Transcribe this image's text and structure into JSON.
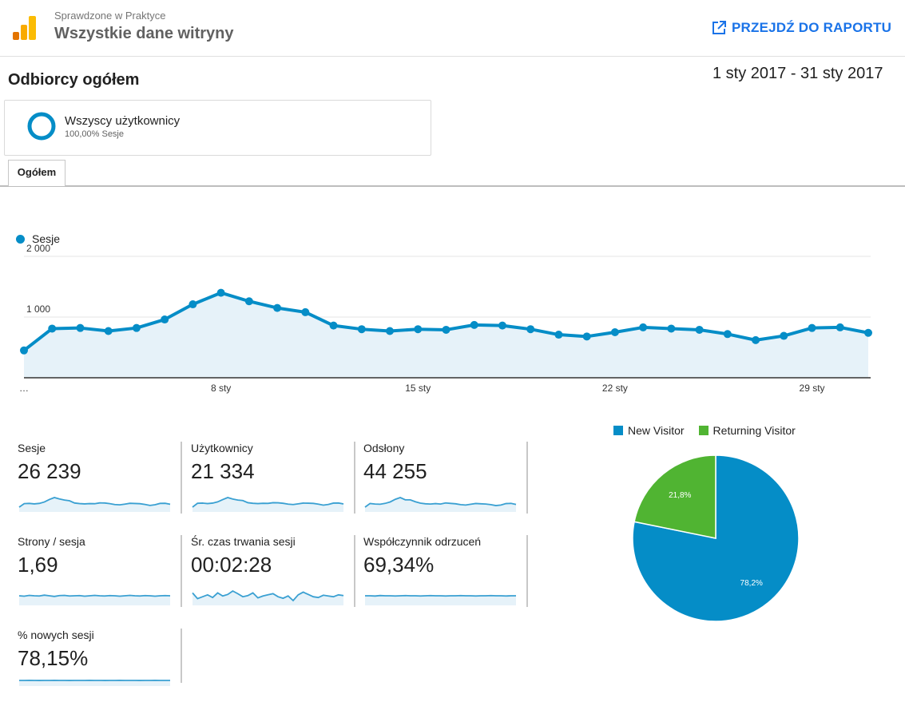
{
  "header": {
    "account": "Sprawdzone w Praktyce",
    "property": "Wszystkie dane witryny",
    "report_button": "PRZEJDŹ DO RAPORTU",
    "report_icon": "open-in-new-icon",
    "logo_icon": "analytics-logo-icon"
  },
  "page": {
    "title": "Odbiorcy ogółem",
    "date_range": "1 sty 2017 - 31 sty 2017"
  },
  "segment": {
    "name": "Wszyscy użytkownicy",
    "detail": "100,00% Sesje"
  },
  "tabs": [
    {
      "label": "Ogółem",
      "active": true
    }
  ],
  "colors": {
    "primary": "#058dc7",
    "returning": "#50b432",
    "link": "#1a73e8",
    "area": "#e6f2f9"
  },
  "chart_data": [
    {
      "type": "line",
      "series": [
        {
          "name": "Sesje",
          "values": [
            450,
            810,
            820,
            770,
            820,
            960,
            1210,
            1400,
            1260,
            1150,
            1080,
            860,
            800,
            770,
            800,
            790,
            870,
            860,
            800,
            710,
            680,
            750,
            830,
            810,
            790,
            720,
            620,
            690,
            820,
            830,
            740
          ]
        }
      ],
      "x": [
        "1 sty",
        "2 sty",
        "3 sty",
        "4 sty",
        "5 sty",
        "6 sty",
        "7 sty",
        "8 sty",
        "9 sty",
        "10 sty",
        "11 sty",
        "12 sty",
        "13 sty",
        "14 sty",
        "15 sty",
        "16 sty",
        "17 sty",
        "18 sty",
        "19 sty",
        "20 sty",
        "21 sty",
        "22 sty",
        "23 sty",
        "24 sty",
        "25 sty",
        "26 sty",
        "27 sty",
        "28 sty",
        "29 sty",
        "30 sty",
        "31 sty"
      ],
      "x_tick_labels": [
        {
          "index": 0,
          "label": "…"
        },
        {
          "index": 7,
          "label": "8 sty"
        },
        {
          "index": 14,
          "label": "15 sty"
        },
        {
          "index": 21,
          "label": "22 sty"
        },
        {
          "index": 28,
          "label": "29 sty"
        }
      ],
      "y_tick_labels": [
        "1 000",
        "2 000"
      ],
      "ylim": [
        0,
        2000
      ],
      "grid": true,
      "legend": "top-left"
    },
    {
      "type": "pie",
      "categories": [
        "New Visitor",
        "Returning Visitor"
      ],
      "values": [
        78.2,
        21.8
      ],
      "labels": [
        "78,2%",
        "21,8%"
      ],
      "colors": [
        "#058dc7",
        "#50b432"
      ],
      "legend": "top"
    }
  ],
  "metrics": [
    {
      "name": "Sesje",
      "value": "26 239",
      "spark": [
        0.45,
        0.8,
        0.82,
        0.77,
        0.82,
        0.96,
        1.21,
        1.4,
        1.26,
        1.15,
        1.08,
        0.86,
        0.8,
        0.77,
        0.8,
        0.79,
        0.87,
        0.86,
        0.8,
        0.71,
        0.68,
        0.75,
        0.83,
        0.81,
        0.79,
        0.72,
        0.62,
        0.69,
        0.82,
        0.83,
        0.74
      ]
    },
    {
      "name": "Użytkownicy",
      "value": "21 334",
      "spark": [
        0.4,
        0.78,
        0.8,
        0.75,
        0.8,
        0.92,
        1.15,
        1.35,
        1.2,
        1.1,
        1.05,
        0.84,
        0.78,
        0.75,
        0.78,
        0.77,
        0.84,
        0.83,
        0.78,
        0.7,
        0.66,
        0.73,
        0.8,
        0.79,
        0.77,
        0.7,
        0.6,
        0.67,
        0.8,
        0.81,
        0.72
      ]
    },
    {
      "name": "Odsłony",
      "value": "44 255",
      "spark": [
        0.5,
        0.85,
        0.8,
        0.78,
        0.86,
        1.0,
        1.25,
        1.42,
        1.2,
        1.2,
        1.02,
        0.88,
        0.82,
        0.8,
        0.84,
        0.8,
        0.9,
        0.86,
        0.82,
        0.74,
        0.7,
        0.78,
        0.85,
        0.82,
        0.8,
        0.74,
        0.65,
        0.7,
        0.84,
        0.86,
        0.76
      ]
    },
    {
      "name": "Strony / sesja",
      "value": "1,69",
      "spark": [
        1.0,
        0.98,
        1.02,
        1.0,
        0.99,
        1.03,
        1.0,
        0.97,
        1.01,
        1.02,
        0.99,
        1.0,
        1.01,
        0.98,
        1.0,
        1.02,
        1.0,
        0.99,
        1.01,
        1.0,
        0.98,
        1.0,
        1.02,
        1.0,
        0.99,
        1.01,
        1.0,
        0.98,
        1.0,
        1.01,
        1.0
      ]
    },
    {
      "name": "Śr. czas trwania sesji",
      "value": "00:02:28",
      "spark": [
        1.0,
        0.85,
        0.9,
        0.95,
        0.88,
        1.0,
        0.92,
        0.96,
        1.05,
        0.98,
        0.9,
        0.93,
        1.0,
        0.87,
        0.92,
        0.95,
        0.98,
        0.9,
        0.86,
        0.92,
        0.8,
        0.95,
        1.02,
        0.96,
        0.9,
        0.88,
        0.94,
        0.92,
        0.9,
        0.95,
        0.93
      ]
    },
    {
      "name": "Współczynnik odrzuceń",
      "value": "69,34%",
      "spark": [
        1.0,
        1.0,
        0.99,
        1.01,
        1.0,
        1.0,
        0.99,
        1.0,
        1.01,
        1.0,
        1.0,
        0.99,
        1.0,
        1.01,
        1.0,
        1.0,
        0.99,
        1.0,
        1.0,
        1.01,
        1.0,
        1.0,
        0.99,
        1.0,
        1.0,
        1.01,
        1.0,
        1.0,
        0.99,
        1.0,
        1.0
      ]
    },
    {
      "name": "% nowych sesji",
      "value": "78,15%",
      "spark": [
        1.0,
        1.0,
        1.01,
        1.0,
        0.99,
        1.0,
        1.0,
        1.01,
        1.0,
        1.0,
        0.99,
        1.0,
        1.0,
        1.0,
        1.01,
        1.0,
        1.0,
        0.99,
        1.0,
        1.0,
        1.01,
        1.0,
        1.0,
        1.0,
        0.99,
        1.0,
        1.0,
        1.01,
        1.0,
        1.0,
        1.0
      ]
    }
  ]
}
